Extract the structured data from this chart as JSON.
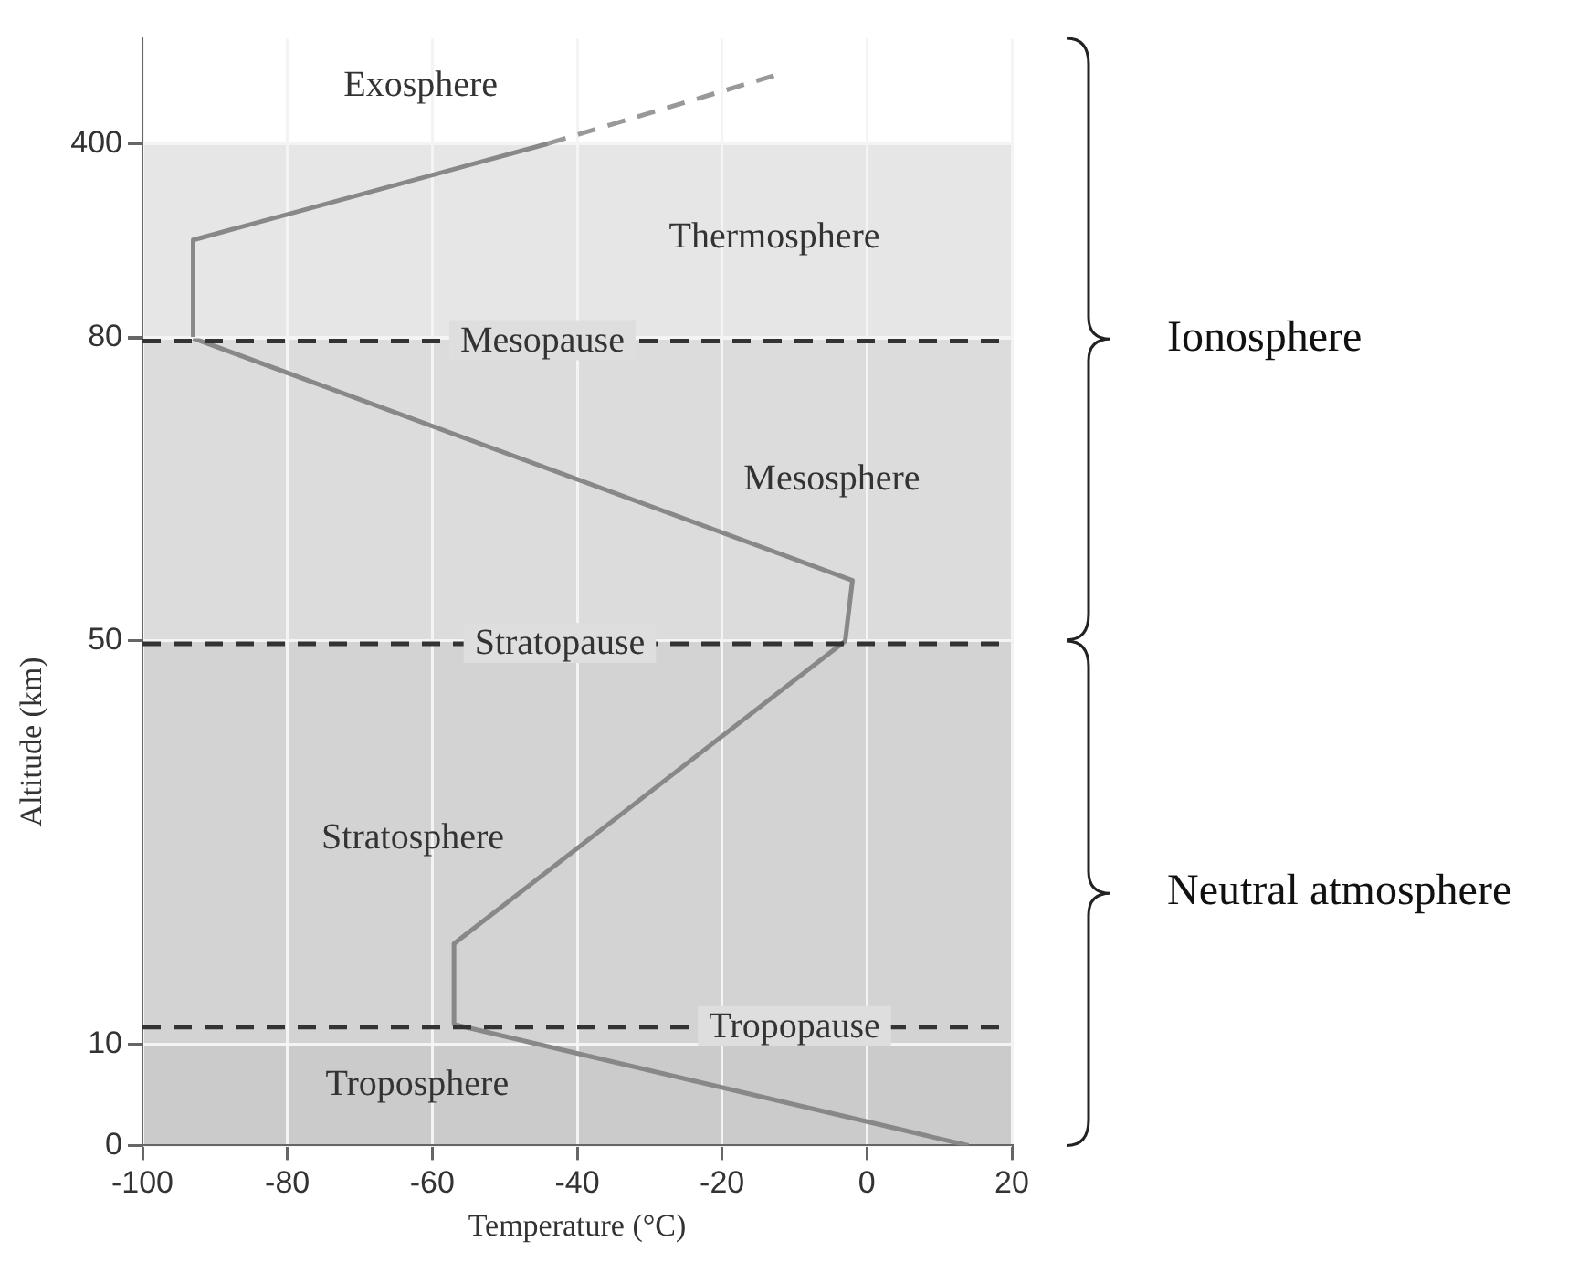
{
  "chart_data": [
    {
      "type": "line",
      "tick_labels": "y",
      "xlim": [
        -100,
        20
      ],
      "xticks": [
        -100,
        -80,
        -60,
        -40,
        -20,
        0,
        20
      ],
      "ylim": [
        80,
        573
      ],
      "yticks": [
        80,
        400
      ],
      "grid": true,
      "legend": false,
      "marker": "none",
      "series": [
        {
          "type": "line",
          "color": "#888888",
          "line_style": "solid",
          "x": [
            -93,
            -93,
            -44
          ],
          "values": [
            80,
            241,
            400
          ]
        },
        {
          "type": "line",
          "color": "#999999",
          "line_style": "dashed",
          "x": [
            -44,
            -12
          ],
          "values": [
            400,
            515
          ]
        }
      ],
      "bands": [
        {
          "axis": "y",
          "from": 80,
          "to": 400,
          "color": "#e6e6e6"
        }
      ],
      "annotations": [
        "Exosphere",
        "Thermosphere"
      ]
    },
    {
      "type": "line",
      "xlabel": "Temperature (°C)",
      "ylabel": "Altitude (km)",
      "xlim": [
        -100,
        20
      ],
      "xticks": [
        -100,
        -80,
        -60,
        -40,
        -20,
        0,
        20
      ],
      "ylim": [
        0,
        80
      ],
      "yticks": [
        0,
        10,
        50,
        {
          "value": 80,
          "label": null
        }
      ],
      "grid": true,
      "legend": false,
      "marker": "none",
      "series": [
        {
          "type": "line",
          "color": "#888888",
          "line_style": "solid",
          "x": [
            14,
            -57,
            -57,
            -3,
            -2,
            -93
          ],
          "values": [
            0,
            12,
            20,
            50,
            56,
            80
          ]
        }
      ],
      "bands": [
        {
          "axis": "y",
          "from": 0,
          "to": 10,
          "color": "#cbcbcb"
        },
        {
          "axis": "y",
          "from": 10,
          "to": 50,
          "color": "#d3d3d3"
        },
        {
          "axis": "y",
          "from": 50,
          "to": 80,
          "color": "#dcdcdc"
        }
      ],
      "ref_lines": [
        {
          "axis": "y",
          "value": 12,
          "label": "Tropopause",
          "color": "#333333",
          "line_style": "dashed"
        },
        {
          "axis": "y",
          "value": 50,
          "label": "Stratopause",
          "color": "#333333",
          "line_style": "dashed"
        },
        {
          "axis": "y",
          "value": 80,
          "label": "Mesopause",
          "color": "#333333",
          "line_style": "dashed"
        }
      ],
      "annotations": [
        "Mesosphere",
        "Stratosphere",
        "Troposphere",
        "Ionosphere",
        "Neutral atmosphere"
      ]
    }
  ]
}
